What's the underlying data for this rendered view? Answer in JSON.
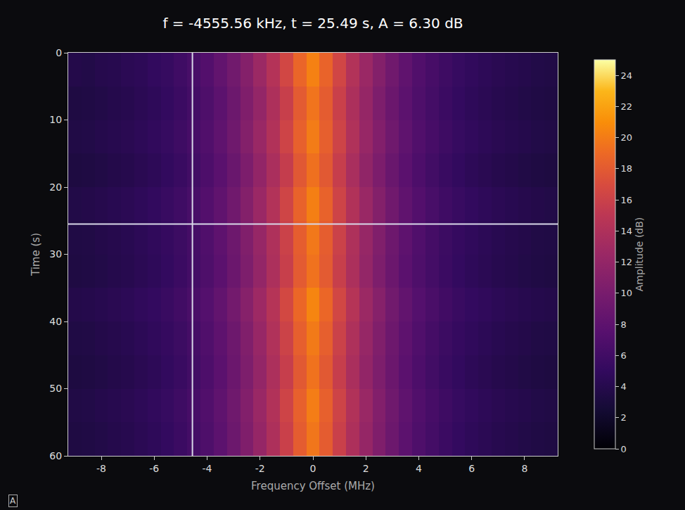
{
  "chart_data": {
    "type": "heatmap",
    "title": "f = -4555.56 kHz, t = 25.49 s, A = 6.30 dB",
    "x_label": "Frequency Offset (MHz)",
    "y_label": "Time (s)",
    "colorbar_label": "Amplitude (dB)",
    "corner_label": "A",
    "x": [
      -9,
      -8.5,
      -8,
      -7.5,
      -7,
      -6.5,
      -6,
      -5.5,
      -5,
      -4.5,
      -4,
      -3.5,
      -3,
      -2.5,
      -2,
      -1.5,
      -1,
      -0.5,
      0,
      0.5,
      1,
      1.5,
      2,
      2.5,
      3,
      3.5,
      4,
      4.5,
      5,
      5.5,
      6,
      6.5,
      7,
      7.5,
      8,
      8.5,
      9
    ],
    "y": [
      2.5,
      7.5,
      12.5,
      17.5,
      22.5,
      27.5,
      32.5,
      37.5,
      42.5,
      47.5,
      52.5,
      57.5
    ],
    "cells": [
      [
        3.8,
        3.7,
        4.0,
        4.1,
        4.4,
        4.6,
        5.0,
        5.3,
        5.9,
        6.5,
        7.2,
        8.3,
        9.5,
        10.9,
        12.6,
        14.4,
        16.5,
        18.7,
        20.3,
        18.6,
        16.4,
        14.3,
        12.5,
        10.8,
        9.4,
        8.2,
        7.1,
        6.4,
        5.8,
        5.3,
        4.9,
        4.6,
        4.3,
        4.1,
        3.9,
        3.7,
        3.6
      ],
      [
        3.4,
        3.5,
        3.7,
        3.9,
        4.1,
        4.4,
        4.7,
        5.1,
        5.6,
        6.2,
        6.9,
        7.9,
        9.1,
        10.5,
        12.0,
        13.9,
        15.8,
        18.0,
        19.6,
        18.1,
        15.9,
        13.8,
        12.1,
        10.4,
        9.0,
        7.9,
        6.9,
        6.2,
        5.6,
        5.1,
        4.7,
        4.4,
        4.1,
        3.9,
        3.7,
        3.5,
        3.4
      ],
      [
        3.6,
        3.7,
        3.9,
        4.1,
        4.3,
        4.6,
        4.9,
        5.3,
        5.8,
        6.4,
        7.1,
        8.1,
        9.3,
        10.8,
        12.4,
        14.2,
        16.2,
        18.4,
        20.0,
        18.3,
        16.2,
        14.1,
        12.3,
        10.7,
        9.3,
        8.1,
        7.1,
        6.4,
        5.8,
        5.3,
        4.9,
        4.6,
        4.3,
        4.1,
        3.9,
        3.7,
        3.6
      ],
      [
        3.3,
        3.4,
        3.6,
        3.8,
        4.0,
        4.3,
        4.6,
        5.0,
        5.5,
        6.1,
        6.8,
        7.7,
        8.9,
        10.3,
        11.9,
        13.7,
        15.6,
        17.8,
        19.4,
        17.9,
        15.7,
        13.6,
        11.8,
        10.3,
        8.9,
        7.8,
        6.8,
        6.1,
        5.5,
        5.0,
        4.6,
        4.3,
        4.0,
        3.8,
        3.6,
        3.4,
        3.3
      ],
      [
        3.7,
        3.8,
        4.0,
        4.2,
        4.4,
        4.7,
        5.0,
        5.4,
        5.9,
        6.5,
        7.2,
        8.2,
        9.4,
        10.8,
        12.5,
        14.3,
        16.3,
        18.5,
        20.2,
        18.5,
        16.2,
        14.2,
        12.4,
        10.8,
        9.4,
        8.2,
        7.2,
        6.5,
        5.9,
        5.4,
        5.0,
        4.7,
        4.4,
        4.2,
        4.0,
        3.8,
        3.7
      ],
      [
        3.5,
        3.6,
        3.8,
        4.0,
        4.2,
        4.5,
        4.8,
        5.2,
        5.7,
        6.3,
        7.0,
        8.0,
        9.2,
        10.6,
        12.2,
        14.0,
        16.0,
        18.2,
        19.8,
        18.2,
        16.0,
        14.0,
        12.2,
        10.6,
        9.2,
        8.0,
        7.0,
        6.3,
        5.7,
        5.2,
        4.8,
        4.5,
        4.2,
        4.0,
        3.8,
        3.6,
        3.5
      ],
      [
        3.4,
        3.5,
        3.7,
        3.9,
        4.1,
        4.4,
        4.7,
        5.1,
        5.6,
        6.2,
        6.9,
        7.8,
        9.0,
        10.4,
        12.0,
        13.8,
        15.8,
        18.0,
        19.5,
        18.0,
        15.8,
        13.8,
        12.0,
        10.4,
        9.0,
        7.8,
        6.9,
        6.2,
        5.6,
        5.1,
        4.7,
        4.4,
        4.1,
        3.9,
        3.7,
        3.5,
        3.4
      ],
      [
        3.8,
        3.9,
        4.1,
        4.3,
        4.5,
        4.8,
        5.1,
        5.5,
        6.0,
        6.6,
        7.3,
        8.3,
        9.6,
        11.0,
        12.7,
        14.5,
        16.6,
        18.8,
        20.5,
        18.8,
        16.5,
        14.5,
        12.6,
        11.0,
        9.5,
        8.3,
        7.3,
        6.6,
        6.0,
        5.5,
        5.1,
        4.8,
        4.5,
        4.3,
        4.1,
        3.9,
        3.8
      ],
      [
        3.5,
        3.6,
        3.8,
        4.0,
        4.2,
        4.5,
        4.8,
        5.2,
        5.7,
        6.3,
        7.0,
        8.0,
        9.2,
        10.6,
        12.3,
        14.1,
        16.1,
        18.3,
        19.9,
        18.3,
        16.0,
        14.0,
        12.2,
        10.6,
        9.2,
        8.0,
        7.0,
        6.3,
        5.7,
        5.2,
        4.8,
        4.5,
        4.2,
        4.0,
        3.8,
        3.6,
        3.5
      ],
      [
        3.3,
        3.4,
        3.6,
        3.8,
        4.0,
        4.3,
        4.6,
        5.0,
        5.5,
        6.1,
        6.8,
        7.8,
        9.0,
        10.4,
        12.0,
        13.8,
        15.7,
        17.9,
        19.5,
        17.9,
        15.7,
        13.7,
        11.9,
        10.4,
        9.0,
        7.8,
        6.8,
        6.1,
        5.5,
        5.0,
        4.6,
        4.3,
        4.0,
        3.8,
        3.6,
        3.4,
        3.3
      ],
      [
        3.6,
        3.7,
        3.9,
        4.1,
        4.3,
        4.6,
        4.9,
        5.3,
        5.8,
        6.4,
        7.1,
        8.1,
        9.3,
        10.7,
        12.4,
        14.2,
        16.2,
        18.4,
        20.1,
        18.4,
        16.2,
        14.2,
        12.4,
        10.7,
        9.3,
        8.1,
        7.1,
        6.4,
        5.8,
        5.3,
        4.9,
        4.6,
        4.3,
        4.1,
        3.9,
        3.7,
        3.6
      ],
      [
        3.4,
        3.5,
        3.7,
        3.9,
        4.1,
        4.4,
        4.7,
        5.1,
        5.6,
        6.2,
        6.9,
        7.9,
        9.1,
        10.5,
        12.1,
        13.9,
        15.9,
        18.1,
        19.7,
        18.1,
        15.9,
        13.9,
        12.1,
        10.5,
        9.1,
        7.9,
        6.9,
        6.2,
        5.6,
        5.1,
        4.7,
        4.4,
        4.1,
        3.9,
        3.7,
        3.5,
        3.4
      ]
    ],
    "xlim": [
      -9.25,
      9.25
    ],
    "xticks": [
      -8,
      -6,
      -4,
      -2,
      0,
      2,
      4,
      6,
      8
    ],
    "ylim": [
      60,
      0
    ],
    "yticks": [
      0,
      10,
      20,
      30,
      40,
      50,
      60
    ],
    "colorbar_range": [
      0,
      25
    ],
    "colorbar_ticks": [
      0,
      2,
      4,
      6,
      8,
      10,
      12,
      14,
      16,
      18,
      20,
      22,
      24
    ],
    "cursor": {
      "x": -4.55556,
      "y": 25.49
    },
    "grid": false
  }
}
